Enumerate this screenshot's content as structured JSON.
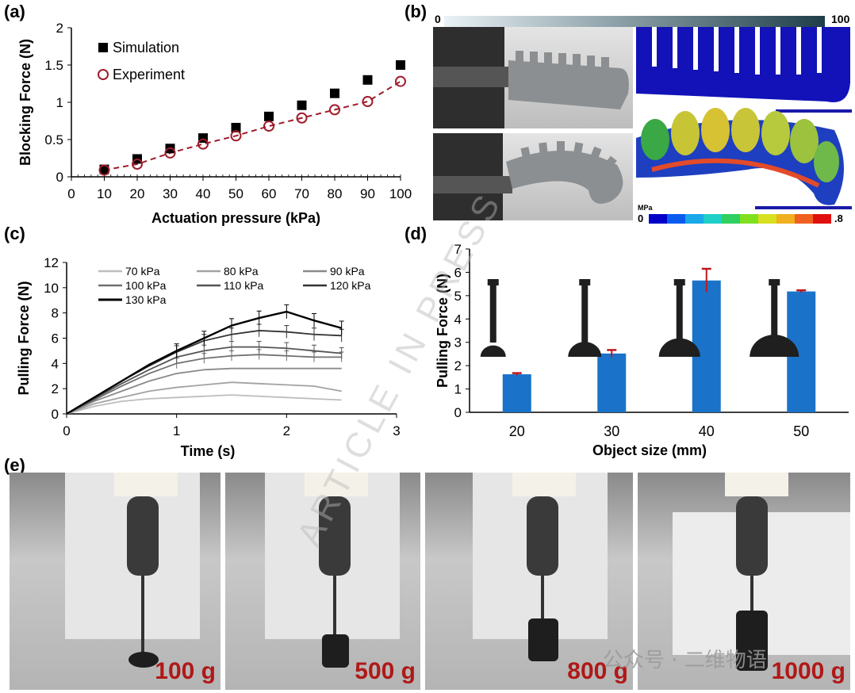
{
  "panels": {
    "a": "(a)",
    "b": "(b)",
    "c": "(c)",
    "d": "(d)",
    "e": "(e)"
  },
  "chart_data": [
    {
      "id": "a",
      "type": "scatter",
      "xlabel": "Actuation pressure (kPa)",
      "ylabel": "Blocking Force (N)",
      "xlim": [
        0,
        100
      ],
      "ylim": [
        0,
        2
      ],
      "xticks": [
        "0",
        "10",
        "20",
        "30",
        "40",
        "50",
        "60",
        "70",
        "80",
        "90",
        "100"
      ],
      "yticks": [
        "0",
        "0.5",
        "1",
        "1.5",
        "2"
      ],
      "legend": "top-left",
      "x": [
        10,
        20,
        30,
        40,
        50,
        60,
        70,
        80,
        90,
        100
      ],
      "series": [
        {
          "name": "Simulation",
          "marker": "filled-square",
          "color": "#000000",
          "values": [
            0.1,
            0.24,
            0.38,
            0.52,
            0.66,
            0.81,
            0.96,
            1.12,
            1.3,
            1.5
          ]
        },
        {
          "name": "Experiment",
          "marker": "open-circle",
          "color": "#a01c2c",
          "fit": "dashed-line",
          "values": [
            0.09,
            0.17,
            0.32,
            0.44,
            0.55,
            0.68,
            0.79,
            0.9,
            1.01,
            1.28
          ]
        }
      ]
    },
    {
      "id": "c",
      "type": "line",
      "xlabel": "Time (s)",
      "ylabel": "Pulling  Force (N)",
      "xlim": [
        0,
        3
      ],
      "ylim": [
        0,
        12
      ],
      "xticks": [
        "0",
        "1",
        "2",
        "3"
      ],
      "yticks": [
        "0",
        "2",
        "4",
        "6",
        "8",
        "10",
        "12"
      ],
      "legend": "top",
      "x": [
        0,
        0.25,
        0.5,
        0.75,
        1.0,
        1.25,
        1.5,
        1.75,
        2.0,
        2.25,
        2.5
      ],
      "series": [
        {
          "name": "70 kPa",
          "color": "#bdbdbd",
          "values": [
            0,
            0.6,
            1.0,
            1.2,
            1.3,
            1.4,
            1.5,
            1.4,
            1.3,
            1.2,
            1.1
          ]
        },
        {
          "name": "80 kPa",
          "color": "#a3a3a3",
          "values": [
            0,
            0.8,
            1.3,
            1.8,
            2.1,
            2.3,
            2.5,
            2.4,
            2.3,
            2.2,
            1.8
          ]
        },
        {
          "name": "90 kPa",
          "color": "#8a8a8a",
          "values": [
            0,
            1.0,
            1.8,
            2.6,
            3.2,
            3.5,
            3.6,
            3.6,
            3.6,
            3.6,
            3.6
          ]
        },
        {
          "name": "100 kPa",
          "color": "#707070",
          "values": [
            0,
            1.1,
            2.2,
            3.2,
            4.0,
            4.4,
            4.6,
            4.7,
            4.6,
            4.5,
            4.5
          ]
        },
        {
          "name": "110 kPa",
          "color": "#555555",
          "values": [
            0,
            1.2,
            2.4,
            3.5,
            4.5,
            5.0,
            5.3,
            5.3,
            5.2,
            5.0,
            4.8
          ]
        },
        {
          "name": "120 kPa",
          "color": "#333333",
          "values": [
            0,
            1.3,
            2.6,
            3.8,
            4.9,
            5.8,
            6.3,
            6.6,
            6.5,
            6.3,
            6.2
          ]
        },
        {
          "name": "130 kPa",
          "color": "#000000",
          "values": [
            0,
            1.3,
            2.6,
            3.9,
            5.0,
            6.0,
            7.0,
            7.6,
            8.1,
            7.4,
            6.8
          ]
        }
      ]
    },
    {
      "id": "d",
      "type": "bar",
      "xlabel": "Object size (mm)",
      "ylabel": "Pulling  Force (N)",
      "ylim": [
        0,
        7
      ],
      "yticks": [
        "0",
        "1",
        "2",
        "3",
        "4",
        "5",
        "6",
        "7"
      ],
      "color": "#1a73c9",
      "error_color": "#c0161c",
      "categories": [
        "20",
        "30",
        "40",
        "50"
      ],
      "values": [
        1.63,
        2.52,
        5.65,
        5.18
      ],
      "errors": [
        0.05,
        0.15,
        0.5,
        0.05
      ]
    }
  ],
  "fem": {
    "pressure_scale": {
      "min": "0",
      "max": "100",
      "unit": "kPa"
    },
    "stress_scale": {
      "min": "0",
      "max": ".8",
      "unit": "MPa"
    }
  },
  "weights": [
    "100 g",
    "500 g",
    "800 g",
    "1000 g"
  ],
  "watermark": "ARTICLE IN PRESS",
  "wechat": "公众号 · 二维物语"
}
